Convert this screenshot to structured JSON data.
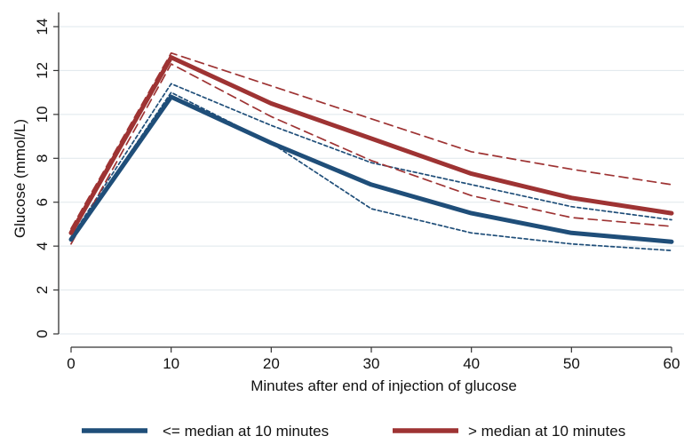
{
  "chart_data": {
    "type": "line",
    "title": "",
    "xlabel": "Minutes after end of injection of glucose",
    "ylabel": "Glucose (mmol/L)",
    "x": [
      0,
      10,
      20,
      30,
      40,
      50,
      60
    ],
    "xlim": [
      0,
      60
    ],
    "ylim": [
      0,
      14
    ],
    "xticks": [
      "0",
      "10",
      "20",
      "30",
      "40",
      "50",
      "60"
    ],
    "yticks": [
      "0",
      "2",
      "4",
      "6",
      "8",
      "10",
      "12",
      "14"
    ],
    "grid": "horizontal",
    "legend_position": "bottom",
    "series": [
      {
        "name": "<= median at 10 minutes",
        "color": "#1f4e79",
        "style": "solid",
        "values": [
          4.3,
          10.8,
          8.7,
          6.8,
          5.5,
          4.6,
          4.2
        ]
      },
      {
        "name": "> median at 10 minutes",
        "color": "#9e3333",
        "style": "solid",
        "values": [
          4.6,
          12.6,
          10.5,
          8.9,
          7.3,
          6.2,
          5.5
        ]
      },
      {
        "color": "#1f4e79",
        "style": "dotted",
        "values": [
          4.3,
          11.0,
          8.7,
          5.7,
          4.6,
          4.1,
          3.8
        ]
      },
      {
        "color": "#1f4e79",
        "style": "dotted",
        "values": [
          4.4,
          11.4,
          9.5,
          7.8,
          6.8,
          5.8,
          5.2
        ]
      },
      {
        "color": "#9e3333",
        "style": "dashed",
        "values": [
          4.1,
          12.3,
          9.9,
          7.9,
          6.3,
          5.3,
          4.9
        ]
      },
      {
        "color": "#9e3333",
        "style": "dashed",
        "values": [
          4.8,
          12.8,
          11.3,
          9.8,
          8.3,
          7.5,
          6.8
        ]
      }
    ]
  }
}
